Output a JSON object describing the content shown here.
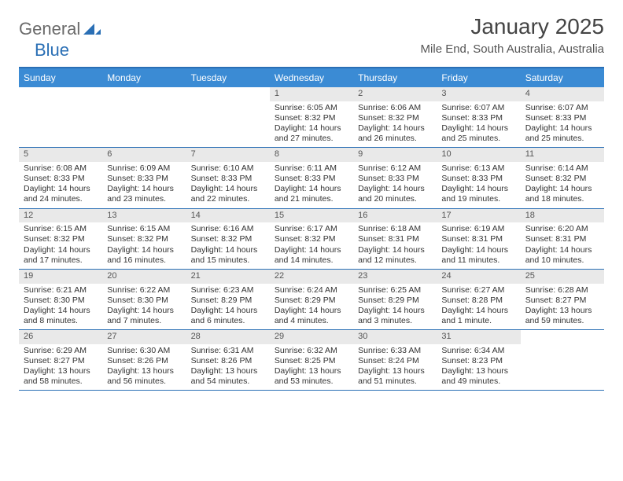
{
  "brand": {
    "part1": "General",
    "part2": "Blue"
  },
  "header": {
    "month_title": "January 2025",
    "location": "Mile End, South Australia, Australia"
  },
  "colors": {
    "header_bar": "#3b8bd4",
    "border": "#2a6fb5",
    "daynum_bg": "#e9e9e9",
    "text": "#333333",
    "bg": "#ffffff"
  },
  "days_of_week": [
    "Sunday",
    "Monday",
    "Tuesday",
    "Wednesday",
    "Thursday",
    "Friday",
    "Saturday"
  ],
  "weeks": [
    [
      {
        "n": "",
        "empty": true
      },
      {
        "n": "",
        "empty": true
      },
      {
        "n": "",
        "empty": true
      },
      {
        "n": "1",
        "sunrise": "Sunrise: 6:05 AM",
        "sunset": "Sunset: 8:32 PM",
        "daylight1": "Daylight: 14 hours",
        "daylight2": "and 27 minutes."
      },
      {
        "n": "2",
        "sunrise": "Sunrise: 6:06 AM",
        "sunset": "Sunset: 8:32 PM",
        "daylight1": "Daylight: 14 hours",
        "daylight2": "and 26 minutes."
      },
      {
        "n": "3",
        "sunrise": "Sunrise: 6:07 AM",
        "sunset": "Sunset: 8:33 PM",
        "daylight1": "Daylight: 14 hours",
        "daylight2": "and 25 minutes."
      },
      {
        "n": "4",
        "sunrise": "Sunrise: 6:07 AM",
        "sunset": "Sunset: 8:33 PM",
        "daylight1": "Daylight: 14 hours",
        "daylight2": "and 25 minutes."
      }
    ],
    [
      {
        "n": "5",
        "sunrise": "Sunrise: 6:08 AM",
        "sunset": "Sunset: 8:33 PM",
        "daylight1": "Daylight: 14 hours",
        "daylight2": "and 24 minutes."
      },
      {
        "n": "6",
        "sunrise": "Sunrise: 6:09 AM",
        "sunset": "Sunset: 8:33 PM",
        "daylight1": "Daylight: 14 hours",
        "daylight2": "and 23 minutes."
      },
      {
        "n": "7",
        "sunrise": "Sunrise: 6:10 AM",
        "sunset": "Sunset: 8:33 PM",
        "daylight1": "Daylight: 14 hours",
        "daylight2": "and 22 minutes."
      },
      {
        "n": "8",
        "sunrise": "Sunrise: 6:11 AM",
        "sunset": "Sunset: 8:33 PM",
        "daylight1": "Daylight: 14 hours",
        "daylight2": "and 21 minutes."
      },
      {
        "n": "9",
        "sunrise": "Sunrise: 6:12 AM",
        "sunset": "Sunset: 8:33 PM",
        "daylight1": "Daylight: 14 hours",
        "daylight2": "and 20 minutes."
      },
      {
        "n": "10",
        "sunrise": "Sunrise: 6:13 AM",
        "sunset": "Sunset: 8:33 PM",
        "daylight1": "Daylight: 14 hours",
        "daylight2": "and 19 minutes."
      },
      {
        "n": "11",
        "sunrise": "Sunrise: 6:14 AM",
        "sunset": "Sunset: 8:32 PM",
        "daylight1": "Daylight: 14 hours",
        "daylight2": "and 18 minutes."
      }
    ],
    [
      {
        "n": "12",
        "sunrise": "Sunrise: 6:15 AM",
        "sunset": "Sunset: 8:32 PM",
        "daylight1": "Daylight: 14 hours",
        "daylight2": "and 17 minutes."
      },
      {
        "n": "13",
        "sunrise": "Sunrise: 6:15 AM",
        "sunset": "Sunset: 8:32 PM",
        "daylight1": "Daylight: 14 hours",
        "daylight2": "and 16 minutes."
      },
      {
        "n": "14",
        "sunrise": "Sunrise: 6:16 AM",
        "sunset": "Sunset: 8:32 PM",
        "daylight1": "Daylight: 14 hours",
        "daylight2": "and 15 minutes."
      },
      {
        "n": "15",
        "sunrise": "Sunrise: 6:17 AM",
        "sunset": "Sunset: 8:32 PM",
        "daylight1": "Daylight: 14 hours",
        "daylight2": "and 14 minutes."
      },
      {
        "n": "16",
        "sunrise": "Sunrise: 6:18 AM",
        "sunset": "Sunset: 8:31 PM",
        "daylight1": "Daylight: 14 hours",
        "daylight2": "and 12 minutes."
      },
      {
        "n": "17",
        "sunrise": "Sunrise: 6:19 AM",
        "sunset": "Sunset: 8:31 PM",
        "daylight1": "Daylight: 14 hours",
        "daylight2": "and 11 minutes."
      },
      {
        "n": "18",
        "sunrise": "Sunrise: 6:20 AM",
        "sunset": "Sunset: 8:31 PM",
        "daylight1": "Daylight: 14 hours",
        "daylight2": "and 10 minutes."
      }
    ],
    [
      {
        "n": "19",
        "sunrise": "Sunrise: 6:21 AM",
        "sunset": "Sunset: 8:30 PM",
        "daylight1": "Daylight: 14 hours",
        "daylight2": "and 8 minutes."
      },
      {
        "n": "20",
        "sunrise": "Sunrise: 6:22 AM",
        "sunset": "Sunset: 8:30 PM",
        "daylight1": "Daylight: 14 hours",
        "daylight2": "and 7 minutes."
      },
      {
        "n": "21",
        "sunrise": "Sunrise: 6:23 AM",
        "sunset": "Sunset: 8:29 PM",
        "daylight1": "Daylight: 14 hours",
        "daylight2": "and 6 minutes."
      },
      {
        "n": "22",
        "sunrise": "Sunrise: 6:24 AM",
        "sunset": "Sunset: 8:29 PM",
        "daylight1": "Daylight: 14 hours",
        "daylight2": "and 4 minutes."
      },
      {
        "n": "23",
        "sunrise": "Sunrise: 6:25 AM",
        "sunset": "Sunset: 8:29 PM",
        "daylight1": "Daylight: 14 hours",
        "daylight2": "and 3 minutes."
      },
      {
        "n": "24",
        "sunrise": "Sunrise: 6:27 AM",
        "sunset": "Sunset: 8:28 PM",
        "daylight1": "Daylight: 14 hours",
        "daylight2": "and 1 minute."
      },
      {
        "n": "25",
        "sunrise": "Sunrise: 6:28 AM",
        "sunset": "Sunset: 8:27 PM",
        "daylight1": "Daylight: 13 hours",
        "daylight2": "and 59 minutes."
      }
    ],
    [
      {
        "n": "26",
        "sunrise": "Sunrise: 6:29 AM",
        "sunset": "Sunset: 8:27 PM",
        "daylight1": "Daylight: 13 hours",
        "daylight2": "and 58 minutes."
      },
      {
        "n": "27",
        "sunrise": "Sunrise: 6:30 AM",
        "sunset": "Sunset: 8:26 PM",
        "daylight1": "Daylight: 13 hours",
        "daylight2": "and 56 minutes."
      },
      {
        "n": "28",
        "sunrise": "Sunrise: 6:31 AM",
        "sunset": "Sunset: 8:26 PM",
        "daylight1": "Daylight: 13 hours",
        "daylight2": "and 54 minutes."
      },
      {
        "n": "29",
        "sunrise": "Sunrise: 6:32 AM",
        "sunset": "Sunset: 8:25 PM",
        "daylight1": "Daylight: 13 hours",
        "daylight2": "and 53 minutes."
      },
      {
        "n": "30",
        "sunrise": "Sunrise: 6:33 AM",
        "sunset": "Sunset: 8:24 PM",
        "daylight1": "Daylight: 13 hours",
        "daylight2": "and 51 minutes."
      },
      {
        "n": "31",
        "sunrise": "Sunrise: 6:34 AM",
        "sunset": "Sunset: 8:23 PM",
        "daylight1": "Daylight: 13 hours",
        "daylight2": "and 49 minutes."
      },
      {
        "n": "",
        "empty": true
      }
    ]
  ]
}
